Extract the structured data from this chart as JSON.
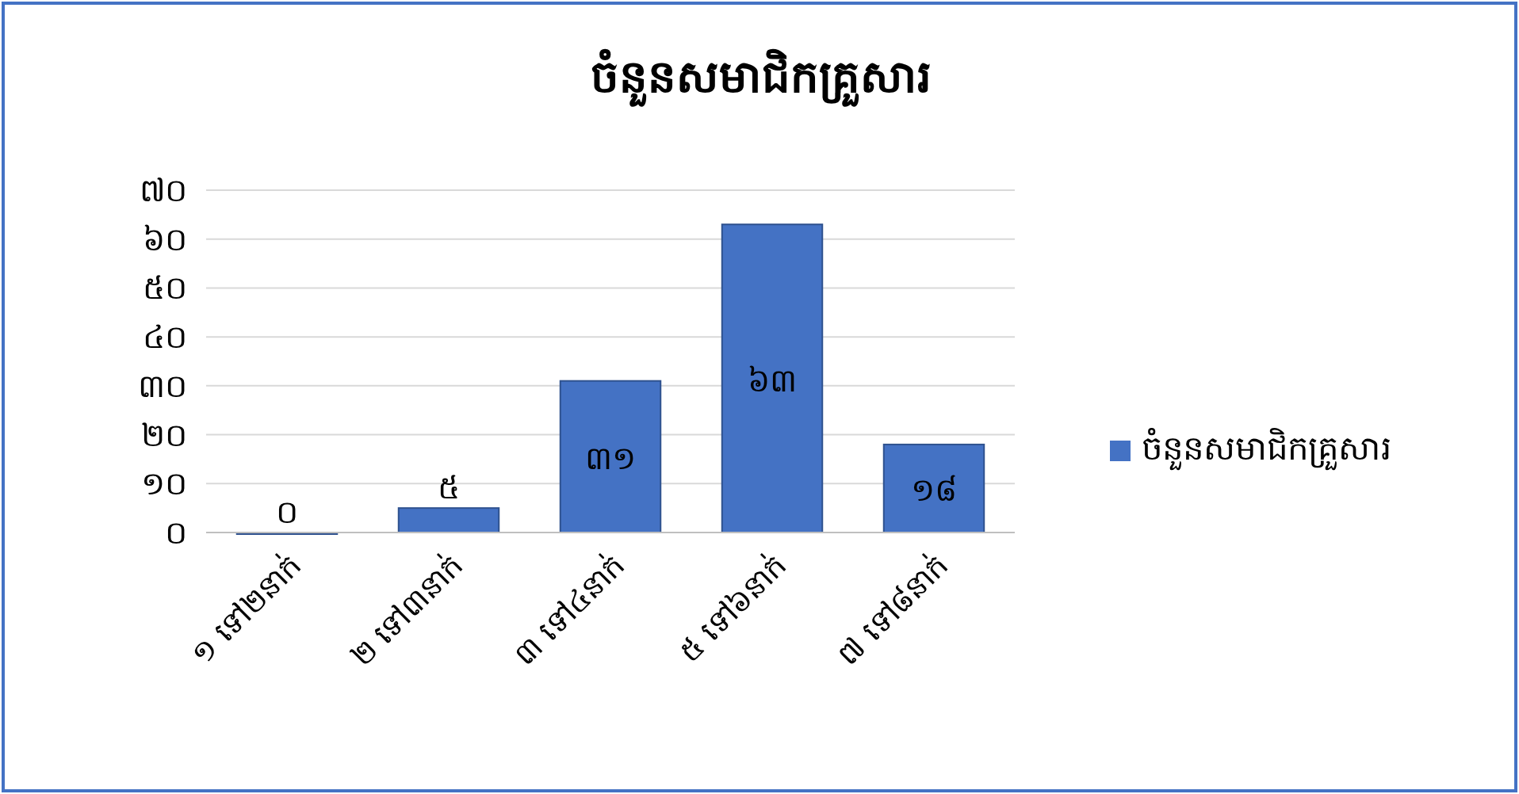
{
  "chart_data": {
    "type": "bar",
    "title": "ចំនួនសមាជិកគ្រួសារ",
    "categories": [
      "១ ទៅ២នាក់",
      "២ ទៅ៣នាក់",
      "៣ ទៅ៤នាក់",
      "៥ ទៅ៦នាក់",
      "៧ ទៅ៨នាក់"
    ],
    "series": [
      {
        "name": "ចំនួនសមាជិកគ្រួសារ",
        "color": "#4472c4",
        "values": [
          0,
          5,
          31,
          63,
          18
        ],
        "value_labels": [
          "០",
          "៥",
          "៣១",
          "៦៣",
          "១៨"
        ]
      }
    ],
    "ylim": [
      0,
      70
    ],
    "yticks": [
      {
        "value": 0,
        "label": "០"
      },
      {
        "value": 10,
        "label": "១០"
      },
      {
        "value": 20,
        "label": "២០"
      },
      {
        "value": 30,
        "label": "៣០"
      },
      {
        "value": 40,
        "label": "៤០"
      },
      {
        "value": 50,
        "label": "៥០"
      },
      {
        "value": 60,
        "label": "៦០"
      },
      {
        "value": 70,
        "label": "៧០"
      }
    ],
    "grid": "y",
    "legend": "right"
  }
}
